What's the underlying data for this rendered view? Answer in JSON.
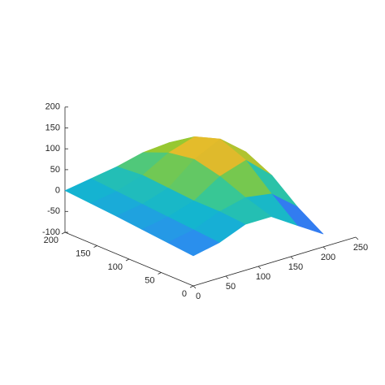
{
  "chart_data": {
    "type": "surface",
    "x": [
      0,
      40,
      80,
      120,
      160,
      200
    ],
    "y": [
      0,
      40,
      80,
      120,
      160,
      200
    ],
    "z": [
      [
        -28,
        -15,
        10,
        10,
        -30,
        -69
      ],
      [
        -22,
        -10,
        15,
        30,
        20,
        -30
      ],
      [
        -16,
        -5,
        15,
        55,
        75,
        20
      ],
      [
        -10,
        0,
        20,
        70,
        100,
        50
      ],
      [
        -5,
        5,
        25,
        60,
        80,
        40
      ],
      [
        0,
        10,
        20,
        35,
        40,
        20
      ]
    ],
    "colormap": [
      "#3e26a8",
      "#4352f0",
      "#2c8cf0",
      "#14b5d0",
      "#33c79a",
      "#90c932",
      "#e2b92c",
      "#fbe51f"
    ],
    "xlim": [
      0,
      250
    ],
    "xticks": [
      0,
      50,
      100,
      150,
      200,
      250
    ],
    "ylim": [
      0,
      200
    ],
    "yticks": [
      0,
      50,
      100,
      150,
      200
    ],
    "zlim": [
      -100,
      200
    ],
    "zticks": [
      -100,
      -50,
      0,
      50,
      100,
      150,
      200
    ]
  }
}
